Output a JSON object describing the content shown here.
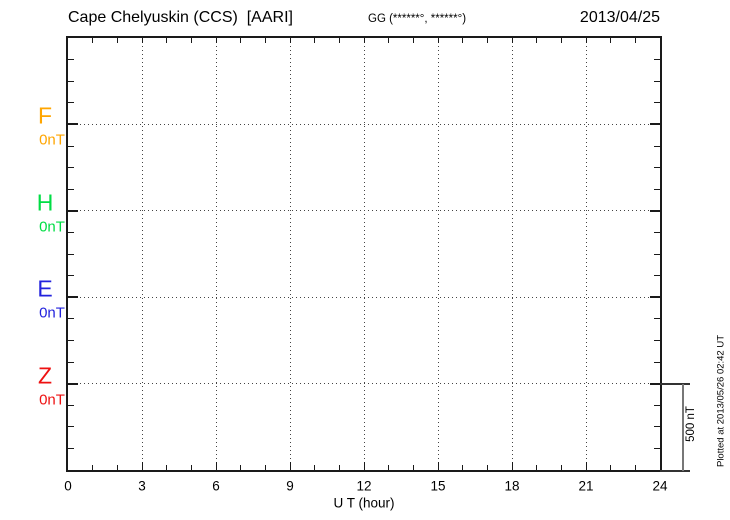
{
  "header": {
    "station_title": "Cape Chelyuskin (CCS)  [AARI]",
    "gg_coordinates": "GG (******°, ******°)",
    "date": "2013/04/25"
  },
  "footer": {
    "plotted_at": "Plotted at 2013/05/26 02:42 UT"
  },
  "chart_data": {
    "type": "line",
    "title": "Cape Chelyuskin (CCS) [AARI] magnetogram, 2013/04/25",
    "xlabel": "U T (hour)",
    "x_range_hours": [
      0,
      24
    ],
    "x_major_tick_step_hours": 3,
    "x_minor_tick_step_hours": 1,
    "x_tick_labels": [
      "0",
      "3",
      "6",
      "9",
      "12",
      "15",
      "18",
      "21",
      "24"
    ],
    "y_scale": {
      "label": "500 nT",
      "nT_per_baseline_division": 500
    },
    "grid": {
      "vertical_dotted_every_hours": 3,
      "horizontal_dotted_at_baselines": true
    },
    "series": [
      {
        "name": "F",
        "baseline_label": "0nT",
        "baseline_value_nT": 0,
        "color": "#FFA500",
        "values": []
      },
      {
        "name": "H",
        "baseline_label": "0nT",
        "baseline_value_nT": 0,
        "color": "#00DD44",
        "values": []
      },
      {
        "name": "E",
        "baseline_label": "0nT",
        "baseline_value_nT": 0,
        "color": "#2222DD",
        "values": []
      },
      {
        "name": "Z",
        "baseline_label": "0nT",
        "baseline_value_nT": 0,
        "color": "#EE1111",
        "values": []
      }
    ]
  }
}
